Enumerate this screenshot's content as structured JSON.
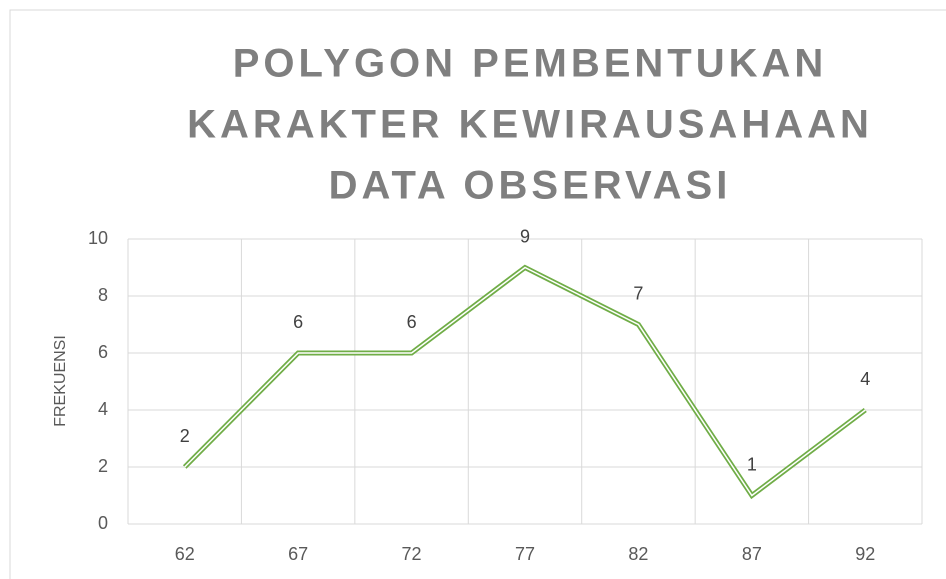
{
  "chart_data": {
    "type": "line",
    "title": [
      "POLYGON PEMBENTUKAN",
      "KARAKTER KEWIRAUSAHAAN",
      "DATA OBSERVASI"
    ],
    "y_label": "FREKUENSI",
    "categories": [
      62,
      67,
      72,
      77,
      82,
      87,
      92
    ],
    "values": [
      2,
      6,
      6,
      9,
      7,
      1,
      4
    ],
    "color": "#70ad47",
    "ylim": [
      0,
      10
    ],
    "yticks": [
      0,
      2,
      4,
      6,
      8,
      10
    ],
    "grid": true,
    "data_labels": true
  }
}
